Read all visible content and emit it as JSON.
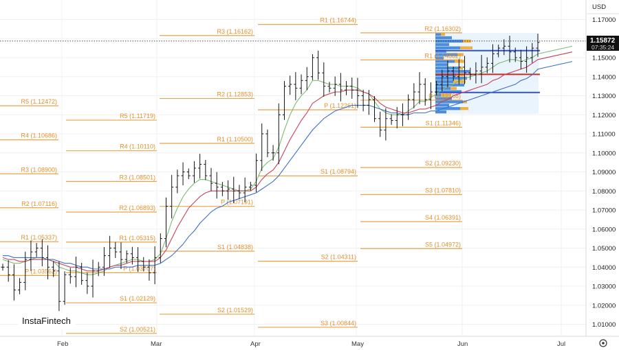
{
  "chart_data": {
    "type": "candlestick",
    "instrument_currency": "USD",
    "last_price": "1.15872",
    "countdown": "07:35:24",
    "brand": "InstaFintech",
    "yaxis": {
      "min": 0.9995,
      "max": 1.1785,
      "ticks": [
        "1.17000",
        "1.16000",
        "1.15000",
        "1.14000",
        "1.13000",
        "1.12000",
        "1.11000",
        "1.10000",
        "1.09000",
        "1.08000",
        "1.07000",
        "1.06000",
        "1.05000",
        "1.04000",
        "1.03000",
        "1.02000",
        "1.01000"
      ]
    },
    "xaxis": {
      "months": [
        "Feb",
        "Mar",
        "Apr",
        "May",
        "Jun",
        "Jul"
      ]
    },
    "pivot_levels": [
      {
        "label": "R5 (1.12472)",
        "value": 1.12472,
        "period": 0
      },
      {
        "label": "R4 (1.10686)",
        "value": 1.10686,
        "period": 0
      },
      {
        "label": "R3 (1.08900)",
        "value": 1.089,
        "period": 0
      },
      {
        "label": "R2 (1.07116)",
        "value": 1.07116,
        "period": 0
      },
      {
        "label": "R1 (1.05337)",
        "value": 1.05337,
        "period": 0
      },
      {
        "label": "P (1.03562)",
        "value": 1.03562,
        "period": 0
      },
      {
        "label": "R5 (1.11719)",
        "value": 1.11719,
        "period": 1
      },
      {
        "label": "R4 (1.10110)",
        "value": 1.1011,
        "period": 1
      },
      {
        "label": "R3 (1.08501)",
        "value": 1.08501,
        "period": 1
      },
      {
        "label": "R2 (1.06893)",
        "value": 1.06893,
        "period": 1
      },
      {
        "label": "R1 (1.05315)",
        "value": 1.05315,
        "period": 1
      },
      {
        "label": "P (1.03707)",
        "value": 1.03707,
        "period": 1
      },
      {
        "label": "S1 (1.02129)",
        "value": 1.02129,
        "period": 1
      },
      {
        "label": "S2 (1.00521)",
        "value": 1.00521,
        "period": 1
      },
      {
        "label": "R3 (1.16162)",
        "value": 1.16162,
        "period": 2
      },
      {
        "label": "R2 (1.12853)",
        "value": 1.12853,
        "period": 2
      },
      {
        "label": "R1 (1.10500)",
        "value": 1.105,
        "period": 2
      },
      {
        "label": "P (1.07191)",
        "value": 1.07191,
        "period": 2
      },
      {
        "label": "S1 (1.04838)",
        "value": 1.04838,
        "period": 2
      },
      {
        "label": "S2 (1.01529)",
        "value": 1.01529,
        "period": 2
      },
      {
        "label": "R1 (1.16744)",
        "value": 1.16744,
        "period": 3
      },
      {
        "label": "P (1.12261)",
        "value": 1.12261,
        "period": 3
      },
      {
        "label": "S1 (1.08794)",
        "value": 1.08794,
        "period": 3
      },
      {
        "label": "S2 (1.04311)",
        "value": 1.04311,
        "period": 3
      },
      {
        "label": "S3 (1.00844)",
        "value": 1.00844,
        "period": 3
      },
      {
        "label": "R2 (1.16302)",
        "value": 1.16302,
        "period": 4
      },
      {
        "label": "R1 (1.14882)",
        "value": 1.14882,
        "period": 4
      },
      {
        "label": "P (1.12768)",
        "value": 1.12768,
        "period": 4
      },
      {
        "label": "S1 (1.11346)",
        "value": 1.11346,
        "period": 4
      },
      {
        "label": "S2 (1.09230)",
        "value": 1.0923,
        "period": 4
      },
      {
        "label": "S3 (1.07810)",
        "value": 1.0781,
        "period": 4
      },
      {
        "label": "S4 (1.06391)",
        "value": 1.06391,
        "period": 4
      },
      {
        "label": "S5 (1.04972)",
        "value": 1.04972,
        "period": 4
      }
    ],
    "price_path": [
      1.04,
      1.036,
      1.028,
      1.032,
      1.044,
      1.048,
      1.05,
      1.045,
      1.04,
      1.038,
      1.022,
      1.036,
      1.035,
      1.04,
      1.033,
      1.03,
      1.038,
      1.04,
      1.046,
      1.05,
      1.048,
      1.044,
      1.047,
      1.045,
      1.043,
      1.04,
      1.037,
      1.045,
      1.055,
      1.072,
      1.082,
      1.088,
      1.09,
      1.088,
      1.092,
      1.094,
      1.088,
      1.084,
      1.082,
      1.08,
      1.081,
      1.08,
      1.079,
      1.082,
      1.083,
      1.096,
      1.11,
      1.1,
      1.1,
      1.12,
      1.135,
      1.136,
      1.134,
      1.138,
      1.14,
      1.15,
      1.142,
      1.135,
      1.134,
      1.136,
      1.133,
      1.135,
      1.133,
      1.13,
      1.125,
      1.128,
      1.118,
      1.112,
      1.118,
      1.117,
      1.12,
      1.12,
      1.128,
      1.132,
      1.136,
      1.128,
      1.132,
      1.136,
      1.14,
      1.143,
      1.14,
      1.145,
      1.142,
      1.141,
      1.143,
      1.145,
      1.147,
      1.152,
      1.155,
      1.156,
      1.153,
      1.15,
      1.148,
      1.15,
      1.155,
      1.158
    ],
    "moving_averages": [
      {
        "color": "#7dbb6f",
        "path": [
          1.044,
          1.043,
          1.042,
          1.042,
          1.043,
          1.044,
          1.045,
          1.045,
          1.044,
          1.043,
          1.04,
          1.039,
          1.038,
          1.038,
          1.037,
          1.036,
          1.036,
          1.037,
          1.038,
          1.04,
          1.041,
          1.042,
          1.043,
          1.044,
          1.044,
          1.043,
          1.043,
          1.044,
          1.047,
          1.055,
          1.064,
          1.071,
          1.077,
          1.081,
          1.084,
          1.086,
          1.086,
          1.085,
          1.084,
          1.083,
          1.082,
          1.081,
          1.08,
          1.08,
          1.081,
          1.085,
          1.092,
          1.095,
          1.097,
          1.103,
          1.112,
          1.12,
          1.126,
          1.13,
          1.133,
          1.138,
          1.138,
          1.137,
          1.136,
          1.136,
          1.135,
          1.135,
          1.135,
          1.134,
          1.132,
          1.131,
          1.127,
          1.123,
          1.121,
          1.12,
          1.12,
          1.12,
          1.122,
          1.124,
          1.127,
          1.127,
          1.129,
          1.131,
          1.133,
          1.135,
          1.136,
          1.138,
          1.139,
          1.14,
          1.141,
          1.142,
          1.143,
          1.145,
          1.147,
          1.148,
          1.149,
          1.149,
          1.148,
          1.149,
          1.15,
          1.152
        ]
      },
      {
        "color": "#c9405a",
        "path": [
          1.045,
          1.044,
          1.044,
          1.043,
          1.043,
          1.044,
          1.044,
          1.044,
          1.044,
          1.043,
          1.042,
          1.041,
          1.04,
          1.04,
          1.039,
          1.038,
          1.038,
          1.038,
          1.039,
          1.04,
          1.041,
          1.041,
          1.042,
          1.043,
          1.043,
          1.043,
          1.043,
          1.043,
          1.045,
          1.049,
          1.055,
          1.061,
          1.066,
          1.071,
          1.074,
          1.077,
          1.079,
          1.08,
          1.08,
          1.08,
          1.08,
          1.08,
          1.08,
          1.08,
          1.08,
          1.082,
          1.086,
          1.089,
          1.091,
          1.095,
          1.101,
          1.107,
          1.112,
          1.117,
          1.121,
          1.126,
          1.128,
          1.13,
          1.131,
          1.132,
          1.132,
          1.133,
          1.133,
          1.133,
          1.132,
          1.131,
          1.129,
          1.126,
          1.124,
          1.123,
          1.122,
          1.121,
          1.121,
          1.122,
          1.123,
          1.123,
          1.124,
          1.125,
          1.127,
          1.128,
          1.13,
          1.131,
          1.132,
          1.133,
          1.134,
          1.135,
          1.136,
          1.138,
          1.139,
          1.141,
          1.142,
          1.143,
          1.144,
          1.145,
          1.147,
          1.149
        ]
      },
      {
        "color": "#3b6fc8",
        "path": [
          1.046,
          1.046,
          1.045,
          1.045,
          1.045,
          1.045,
          1.045,
          1.045,
          1.044,
          1.044,
          1.043,
          1.042,
          1.042,
          1.041,
          1.04,
          1.04,
          1.039,
          1.039,
          1.039,
          1.039,
          1.04,
          1.04,
          1.04,
          1.04,
          1.041,
          1.041,
          1.041,
          1.041,
          1.042,
          1.044,
          1.046,
          1.049,
          1.052,
          1.056,
          1.059,
          1.063,
          1.066,
          1.069,
          1.071,
          1.072,
          1.074,
          1.075,
          1.076,
          1.077,
          1.078,
          1.079,
          1.081,
          1.083,
          1.085,
          1.088,
          1.092,
          1.096,
          1.1,
          1.104,
          1.108,
          1.112,
          1.115,
          1.118,
          1.12,
          1.122,
          1.123,
          1.124,
          1.125,
          1.125,
          1.125,
          1.125,
          1.124,
          1.123,
          1.122,
          1.121,
          1.121,
          1.12,
          1.12,
          1.121,
          1.121,
          1.121,
          1.122,
          1.122,
          1.123,
          1.124,
          1.125,
          1.126,
          1.127,
          1.128,
          1.129,
          1.13,
          1.131,
          1.132,
          1.133,
          1.134,
          1.135,
          1.136,
          1.138,
          1.139,
          1.141,
          1.144
        ]
      }
    ],
    "volume_profile_lines": [
      {
        "color": "#2f4fd0",
        "value": 1.1537
      },
      {
        "color": "#c82a2a",
        "value": 1.1412
      },
      {
        "color": "#2f4fd0",
        "value": 1.1317
      }
    ]
  }
}
